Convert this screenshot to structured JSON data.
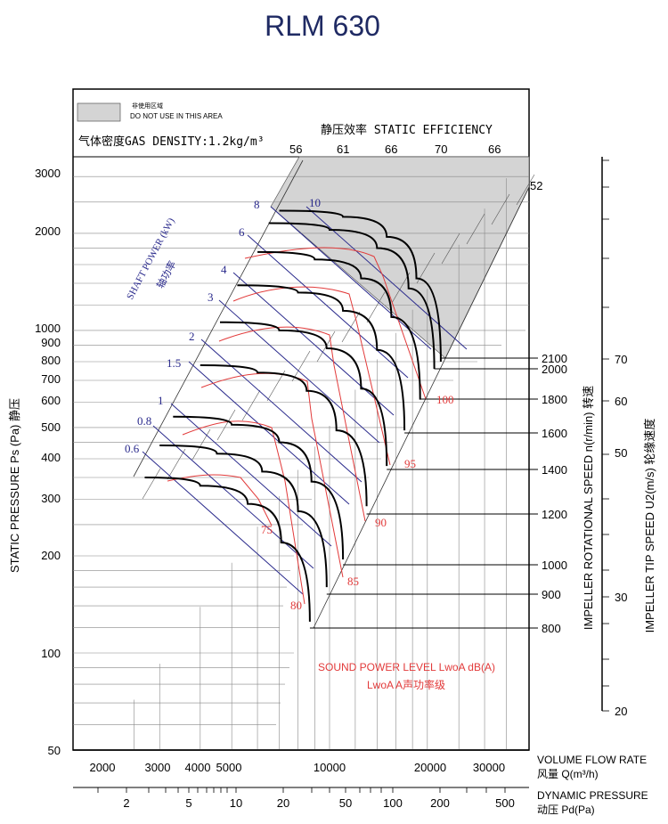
{
  "chart_data": {
    "type": "line",
    "title": "RLM 630",
    "warning": {
      "cn": "非使用区域",
      "en": "DO NOT USE IN THIS AREA"
    },
    "density_label": "气体密度GAS DENSITY:1.2kg/m³",
    "efficiency_label": "静压效率 STATIC EFFICIENCY",
    "efficiency_ticks": [
      "56",
      "61",
      "66",
      "70",
      "66"
    ],
    "efficiency_ticks_right": [
      "52"
    ],
    "shaft_power": {
      "en": "SHAFT POWER (kW)",
      "cn": "轴功率",
      "values": [
        "8",
        "10",
        "6",
        "4",
        "3",
        "2",
        "1.5",
        "1",
        "0.8",
        "0.6"
      ]
    },
    "sound_label": "SOUND POWER LEVEL LwoA dB(A)",
    "sound_label2": "LwoA  A声功率级",
    "sound_levels": [
      "100",
      "95",
      "90",
      "85",
      "80",
      "75"
    ],
    "ylabel": "STATIC PRESSURE Ps (Pa) 静压",
    "y_ticks": [
      "3000",
      "2000",
      "1000",
      "900",
      "800",
      "700",
      "600",
      "500",
      "400",
      "300",
      "200",
      "100",
      "50"
    ],
    "ylim": [
      50,
      3000
    ],
    "x_label": "VOLUME FLOW RATE",
    "x_label_cn": "风量 Q(m³/h)",
    "x_ticks": [
      "2000",
      "3000",
      "4000",
      "5000",
      "10000",
      "20000",
      "30000"
    ],
    "xlim": [
      1500,
      40000
    ],
    "x2_label": "DYNAMIC PRESSURE",
    "x2_label_cn": "动压 Pd(Pa)",
    "x2_ticks": [
      "2",
      "5",
      "10",
      "20",
      "50",
      "100",
      "200",
      "500"
    ],
    "rotation_label": "IMPELLER ROTATIONAL SPEED n(r/min) 转速",
    "rotation_speeds": [
      "2100",
      "2000",
      "1800",
      "1600",
      "1400",
      "1200",
      "1000",
      "900",
      "800"
    ],
    "tip_label": "IMPELLER TIP SPEED U2(m/s) 轮缘速度",
    "tip_speeds": [
      "70",
      "60",
      "50",
      "30",
      "20"
    ],
    "series": [
      {
        "rpm": 2100,
        "points": [
          [
            7000,
            2350
          ],
          [
            11000,
            2250
          ],
          [
            15000,
            1950
          ],
          [
            18500,
            1450
          ],
          [
            22000,
            800
          ]
        ]
      },
      {
        "rpm": 2000,
        "points": [
          [
            6500,
            2150
          ],
          [
            10000,
            2050
          ],
          [
            14000,
            1800
          ],
          [
            17500,
            1350
          ],
          [
            21000,
            760
          ]
        ]
      },
      {
        "rpm": 1800,
        "points": [
          [
            6000,
            1750
          ],
          [
            9000,
            1660
          ],
          [
            12500,
            1450
          ],
          [
            15500,
            1100
          ],
          [
            19000,
            610
          ]
        ]
      },
      {
        "rpm": 1600,
        "points": [
          [
            5200,
            1380
          ],
          [
            8000,
            1310
          ],
          [
            11000,
            1150
          ],
          [
            14000,
            870
          ],
          [
            17000,
            490
          ]
        ]
      },
      {
        "rpm": 1400,
        "points": [
          [
            4600,
            1060
          ],
          [
            7000,
            1000
          ],
          [
            9800,
            880
          ],
          [
            12500,
            660
          ],
          [
            15000,
            380
          ]
        ]
      },
      {
        "rpm": 1200,
        "points": [
          [
            4000,
            780
          ],
          [
            6000,
            740
          ],
          [
            8500,
            650
          ],
          [
            10500,
            490
          ],
          [
            13000,
            285
          ]
        ]
      },
      {
        "rpm": 1000,
        "points": [
          [
            3300,
            540
          ],
          [
            5000,
            510
          ],
          [
            7000,
            450
          ],
          [
            8800,
            340
          ],
          [
            11000,
            195
          ]
        ]
      },
      {
        "rpm": 900,
        "points": [
          [
            3000,
            440
          ],
          [
            4500,
            415
          ],
          [
            6200,
            365
          ],
          [
            8000,
            275
          ],
          [
            9800,
            160
          ]
        ]
      },
      {
        "rpm": 800,
        "points": [
          [
            2700,
            350
          ],
          [
            4000,
            330
          ],
          [
            5600,
            290
          ],
          [
            7100,
            220
          ],
          [
            8700,
            125
          ]
        ]
      }
    ]
  }
}
